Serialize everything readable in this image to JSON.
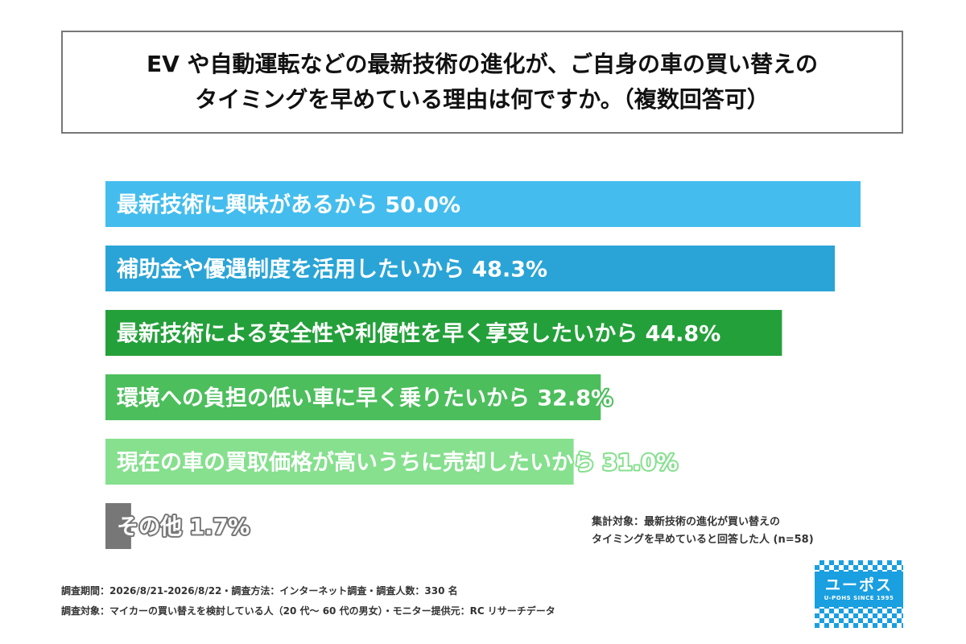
{
  "title": {
    "line1": "EV や自動運転などの最新技術の進化が、ご自身の車の買い替えの",
    "line2": "タイミングを早めている理由は何ですか。（複数回答可）"
  },
  "chart_data": {
    "type": "bar",
    "orientation": "horizontal",
    "categories": [
      "最新技術に興味があるから",
      "補助金や優遇制度を活用したいから",
      "最新技術による安全性や利便性を早く享受したいから",
      "環境への負担の低い車に早く乗りたいから",
      "現在の車の買取価格が高いうちに売却したいから",
      "その他"
    ],
    "values": [
      50.0,
      48.3,
      44.8,
      32.8,
      31.0,
      1.7
    ],
    "value_labels": [
      "50.0%",
      "48.3%",
      "44.8%",
      "32.8%",
      "31.0%",
      "1.7%"
    ],
    "colors": [
      "#44bdee",
      "#2aa4d6",
      "#24a03a",
      "#4cbe5c",
      "#86e08e",
      "#777777"
    ],
    "xlim": [
      0,
      50
    ]
  },
  "note": {
    "line1": "集計対象：最新技術の進化が買い替えの",
    "line2": "タイミングを早めていると回答した人 (n=58)"
  },
  "footer": {
    "line1": "調査期間：2026/8/21-2026/8/22・調査方法：インターネット調査・調査人数：330 名",
    "line2": "調査対象：マイカーの買い替えを検討している人（20 代〜 60 代の男女）・モニター提供元：RC リサーチデータ"
  },
  "logo": {
    "main": "ユーポス",
    "sub": "U-POHS SINCE 1995"
  }
}
